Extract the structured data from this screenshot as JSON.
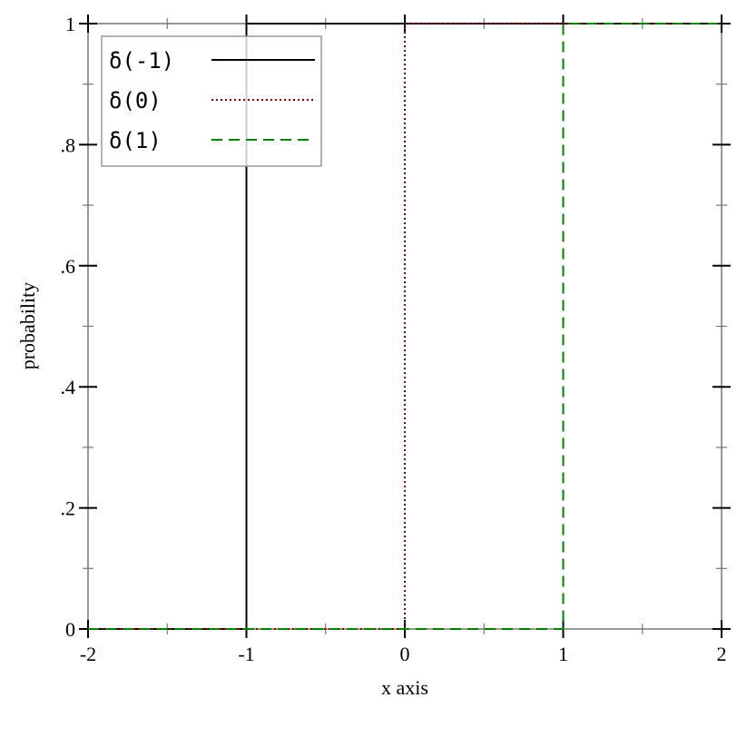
{
  "chart_data": {
    "type": "line",
    "title": "",
    "xlabel": "x axis",
    "ylabel": "probability",
    "xlim": [
      -2,
      2
    ],
    "ylim": [
      0,
      1
    ],
    "x_ticks": [
      "-2",
      "-1",
      "0",
      "1",
      "2"
    ],
    "x_tick_values": [
      -2,
      -1,
      0,
      1,
      2
    ],
    "y_ticks": [
      "0",
      ".2",
      ".4",
      ".6",
      ".8",
      "1"
    ],
    "y_tick_values": [
      0,
      0.2,
      0.4,
      0.6,
      0.8,
      1
    ],
    "grid": false,
    "legend_placement": "top-left",
    "series": [
      {
        "name": "δ(-1)",
        "color": "#000000",
        "style": "solid",
        "points": [
          [
            -2,
            0
          ],
          [
            -1,
            0
          ],
          [
            -1,
            1
          ],
          [
            2,
            1
          ]
        ]
      },
      {
        "name": "δ(0)",
        "color": "#8b0000",
        "style": "dotted",
        "points": [
          [
            -2,
            0
          ],
          [
            0,
            0
          ],
          [
            0,
            1
          ],
          [
            2,
            1
          ]
        ]
      },
      {
        "name": "δ(1)",
        "color": "#008000",
        "style": "dashed",
        "points": [
          [
            -2,
            0
          ],
          [
            1,
            0
          ],
          [
            1,
            1
          ],
          [
            2,
            1
          ]
        ]
      }
    ]
  }
}
